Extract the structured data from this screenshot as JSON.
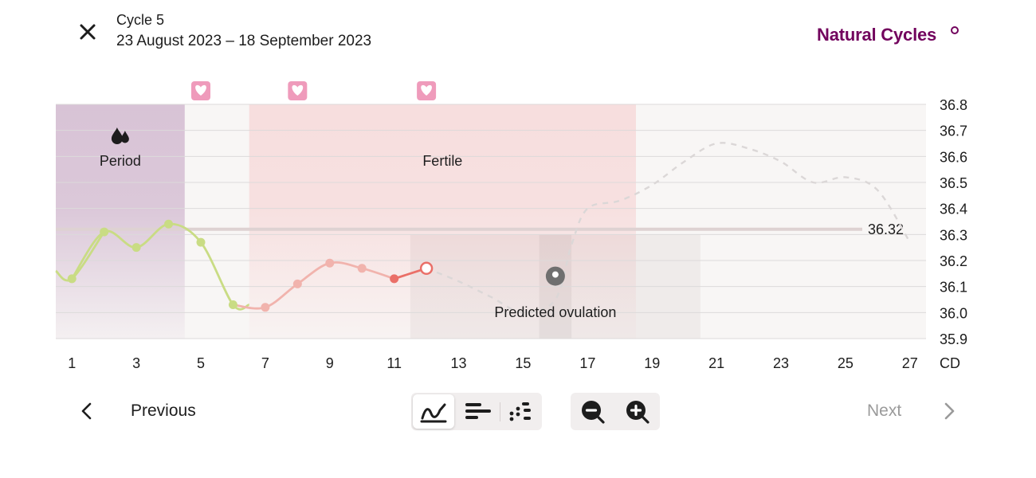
{
  "header": {
    "close_icon": "close-icon",
    "cycle_title": "Cycle 5",
    "cycle_dates": "23 August 2023 – 18 September 2023",
    "brand": "Natural Cycles"
  },
  "colors": {
    "brand": "#72035d",
    "period_band": "#d8c3d6",
    "fertile_band": "#f7dede",
    "pre_fertile_line": "#c9dc84",
    "fertile_line": "#f1b3ad",
    "recent_line": "#ea6f68",
    "prediction_line": "#dbd7d7",
    "heart_badge": "#ef9bbb",
    "ovulation_marker": "#6f6f6f"
  },
  "chart_data": {
    "type": "line",
    "x_label": "CD",
    "x_range": [
      0.5,
      27.5
    ],
    "x_ticks": [
      1,
      3,
      5,
      7,
      9,
      11,
      13,
      15,
      17,
      19,
      21,
      23,
      25,
      27
    ],
    "ylim": [
      35.9,
      36.8
    ],
    "y_ticks": [
      36.8,
      36.7,
      36.6,
      36.5,
      36.4,
      36.3,
      36.2,
      36.1,
      36.0,
      35.9
    ],
    "grid": true,
    "phases": [
      {
        "name": "Period",
        "label": "Period",
        "start": 0.5,
        "end": 4.5,
        "icon": "drops-icon"
      },
      {
        "name": "Fertile",
        "label": "Fertile",
        "start": 6.5,
        "end": 18.5
      }
    ],
    "prediction_window": {
      "start": 11.5,
      "end": 20.5
    },
    "ovulation_window": {
      "start": 15.5,
      "end": 16.5
    },
    "intercourse_days": [
      5,
      8,
      12
    ],
    "coverline": {
      "value": 36.32,
      "label": "36.32"
    },
    "series": [
      {
        "style": "measured",
        "points": [
          [
            1,
            36.13
          ],
          [
            2,
            36.31
          ],
          [
            3,
            36.25
          ],
          [
            4,
            36.34
          ],
          [
            5,
            36.27
          ],
          [
            6,
            36.03
          ],
          [
            7,
            36.02
          ],
          [
            8,
            36.11
          ],
          [
            9,
            36.19
          ],
          [
            10,
            36.17
          ],
          [
            11,
            36.13
          ],
          [
            12,
            36.17
          ]
        ]
      },
      {
        "style": "predicted",
        "points": [
          [
            12,
            36.17
          ],
          [
            13,
            36.12
          ],
          [
            14,
            36.06
          ],
          [
            15,
            36.0
          ],
          [
            16,
            36.05
          ],
          [
            16.5,
            36.26
          ],
          [
            17,
            36.4
          ],
          [
            18,
            36.43
          ],
          [
            19,
            36.49
          ],
          [
            20,
            36.58
          ],
          [
            21,
            36.65
          ],
          [
            22,
            36.63
          ],
          [
            23,
            36.58
          ],
          [
            24,
            36.5
          ],
          [
            25,
            36.52
          ],
          [
            26,
            36.47
          ],
          [
            27,
            36.27
          ]
        ]
      }
    ],
    "today": 12,
    "ovulation_marker": {
      "day": 16,
      "value": 36.14
    },
    "annotations": [
      {
        "text": "Predicted ovulation",
        "day": 16
      }
    ]
  },
  "footer": {
    "previous": "Previous",
    "next": "Next",
    "view_icons": [
      "line-graph-icon",
      "bar-list-icon",
      "dot-grid-icon"
    ],
    "zoom_icons": [
      "zoom-out-icon",
      "zoom-in-icon"
    ]
  }
}
